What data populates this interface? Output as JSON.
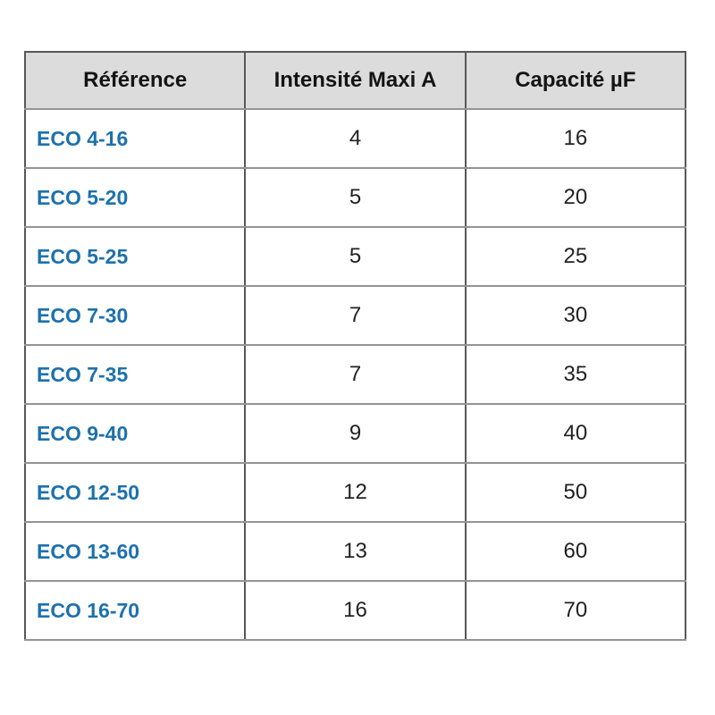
{
  "table": {
    "headers": [
      "Référence",
      "Intensité Maxi A",
      "Capacité µF"
    ],
    "rows": [
      {
        "reference": "ECO 4-16",
        "intensity": "4",
        "capacity": "16"
      },
      {
        "reference": "ECO 5-20",
        "intensity": "5",
        "capacity": "20"
      },
      {
        "reference": "ECO 5-25",
        "intensity": "5",
        "capacity": "25"
      },
      {
        "reference": "ECO 7-30",
        "intensity": "7",
        "capacity": "30"
      },
      {
        "reference": "ECO 7-35",
        "intensity": "7",
        "capacity": "35"
      },
      {
        "reference": "ECO 9-40",
        "intensity": "9",
        "capacity": "40"
      },
      {
        "reference": "ECO 12-50",
        "intensity": "12",
        "capacity": "50"
      },
      {
        "reference": "ECO 13-60",
        "intensity": "13",
        "capacity": "60"
      },
      {
        "reference": "ECO 16-70",
        "intensity": "16",
        "capacity": "70"
      }
    ]
  },
  "colors": {
    "header_background": "#dcdcdc",
    "outer_border": "#57575b",
    "column_divider": "#57575b",
    "row_divider": "#949494",
    "reference_text": "#1d71ad",
    "header_text": "#141414",
    "value_text": "#222222",
    "page_background": "#ffffff"
  }
}
